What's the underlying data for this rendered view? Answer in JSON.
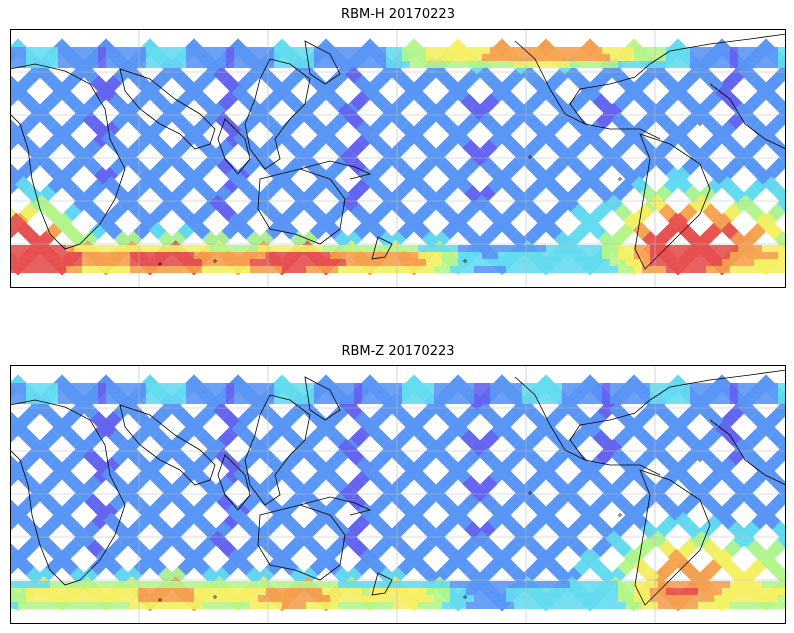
{
  "panels": [
    {
      "title": "RBM-H 20170223",
      "hot_zones": [
        {
          "region": "south-west edge",
          "level": 0.95
        },
        {
          "region": "southern ocean band",
          "level": 0.75
        },
        {
          "region": "south atlantic",
          "level": 1.0
        },
        {
          "region": "north pacific edge",
          "level": 0.7
        }
      ]
    },
    {
      "title": "RBM-Z 20170223",
      "hot_zones": [
        {
          "region": "south atlantic",
          "level": 0.75
        },
        {
          "region": "southern ocean band",
          "level": 0.55
        }
      ]
    }
  ],
  "colormap": [
    "#6464f0",
    "#5a96f5",
    "#64dcf0",
    "#b4f58c",
    "#f5f064",
    "#f5a050",
    "#e65050"
  ]
}
